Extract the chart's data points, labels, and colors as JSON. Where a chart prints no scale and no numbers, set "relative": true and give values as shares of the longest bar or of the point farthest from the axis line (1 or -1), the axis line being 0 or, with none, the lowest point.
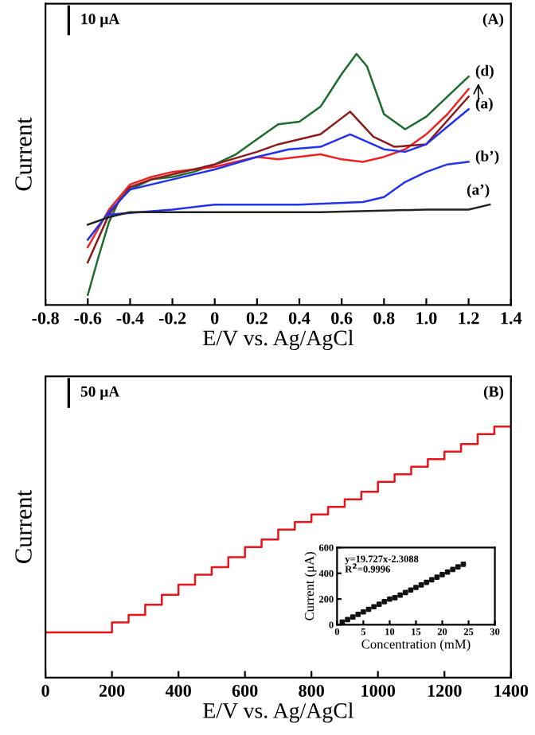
{
  "chart_data": [
    {
      "type": "line",
      "relative": true,
      "xlabel": "E/V vs. Ag/AgCl",
      "ylabel": "Current",
      "xlim": [
        -0.8,
        1.4
      ],
      "xticks": [
        -0.8,
        -0.6,
        -0.4,
        -0.2,
        0,
        0.2,
        0.4,
        0.6,
        0.8,
        {
          "value": 1.0,
          "label": "1.0"
        },
        1.2,
        1.4
      ],
      "annotations": [
        "10 μA",
        "(A)"
      ],
      "grid": false,
      "legend": false,
      "series": [
        {
          "name": "(d)",
          "color": "#1e6b2e",
          "x": [
            -0.6,
            -0.55,
            -0.5,
            -0.45,
            -0.4,
            -0.3,
            -0.2,
            -0.1,
            0,
            0.1,
            0.2,
            0.3,
            0.4,
            0.5,
            0.6,
            0.67,
            0.72,
            0.8,
            0.9,
            1.0,
            1.1,
            1.2
          ],
          "values": [
            0.04,
            0.19,
            0.33,
            0.42,
            0.46,
            0.5,
            0.51,
            0.53,
            0.56,
            0.6,
            0.66,
            0.72,
            0.73,
            0.79,
            0.92,
            1.0,
            0.95,
            0.76,
            0.7,
            0.75,
            0.83,
            0.91
          ]
        },
        {
          "color": "#ee2222",
          "x": [
            -0.6,
            -0.5,
            -0.4,
            -0.3,
            -0.2,
            0,
            0.2,
            0.3,
            0.5,
            0.6,
            0.7,
            0.8,
            0.9,
            1.0,
            1.1,
            1.2
          ],
          "values": [
            0.23,
            0.38,
            0.48,
            0.51,
            0.53,
            0.55,
            0.59,
            0.58,
            0.6,
            0.58,
            0.57,
            0.59,
            0.62,
            0.68,
            0.76,
            0.86
          ]
        },
        {
          "color": "#8b1a1a",
          "x": [
            -0.6,
            -0.5,
            -0.4,
            -0.3,
            -0.2,
            0,
            0.2,
            0.3,
            0.5,
            0.64,
            0.75,
            0.85,
            1.0,
            1.2
          ],
          "values": [
            0.17,
            0.36,
            0.47,
            0.5,
            0.52,
            0.56,
            0.61,
            0.64,
            0.68,
            0.77,
            0.67,
            0.63,
            0.64,
            0.83
          ]
        },
        {
          "name": "(a)",
          "color": "#2233ee",
          "x": [
            -0.6,
            -0.5,
            -0.4,
            -0.2,
            0,
            0.2,
            0.35,
            0.5,
            0.64,
            0.8,
            0.9,
            1.0,
            1.1,
            1.2
          ],
          "values": [
            0.26,
            0.37,
            0.46,
            0.5,
            0.54,
            0.59,
            0.62,
            0.63,
            0.68,
            0.62,
            0.61,
            0.64,
            0.71,
            0.78
          ]
        },
        {
          "name": "(b’)",
          "color": "#2233ee",
          "x": [
            -0.5,
            -0.2,
            0,
            0.4,
            0.7,
            0.8,
            0.9,
            1.0,
            1.1,
            1.2
          ],
          "values": [
            0.36,
            0.38,
            0.4,
            0.4,
            0.41,
            0.43,
            0.49,
            0.53,
            0.56,
            0.57
          ]
        },
        {
          "name": "(a’)",
          "color": "#222222",
          "x": [
            -0.6,
            -0.5,
            -0.4,
            0,
            0.5,
            1.0,
            1.2,
            1.3
          ],
          "values": [
            0.32,
            0.35,
            0.37,
            0.37,
            0.37,
            0.38,
            0.38,
            0.4
          ]
        }
      ]
    },
    {
      "type": "step",
      "relative": true,
      "xlabel": "E/V vs. Ag/AgCl",
      "ylabel": "Current",
      "xlim": [
        0,
        1400
      ],
      "xticks": [
        0,
        200,
        400,
        600,
        800,
        1000,
        1200,
        1400
      ],
      "annotations": [
        "50 μA",
        "(B)"
      ],
      "grid": false,
      "legend": false,
      "series": [
        {
          "color": "#e8141a",
          "x": [
            0,
            200,
            250,
            300,
            350,
            400,
            450,
            500,
            550,
            600,
            650,
            700,
            750,
            800,
            850,
            900,
            950,
            1000,
            1050,
            1100,
            1150,
            1200,
            1250,
            1300,
            1350,
            1400
          ],
          "values": [
            0.18,
            0.22,
            0.25,
            0.29,
            0.33,
            0.37,
            0.41,
            0.44,
            0.48,
            0.52,
            0.55,
            0.59,
            0.62,
            0.65,
            0.68,
            0.71,
            0.74,
            0.78,
            0.81,
            0.84,
            0.87,
            0.9,
            0.93,
            0.97,
            1.0,
            1.0
          ]
        }
      ]
    },
    {
      "type": "scatter",
      "xlabel": "Concentration (mM)",
      "ylabel": "Current (μA)",
      "xlim": [
        0,
        30
      ],
      "xticks": [
        0,
        5,
        10,
        15,
        20,
        25,
        30
      ],
      "ylim": [
        0,
        600
      ],
      "yticks": [
        0,
        200,
        400,
        600
      ],
      "annotations": [
        "y=19.727x-2.3088",
        "R$^{2}$=0.9996"
      ],
      "grid": false,
      "legend": false,
      "marker": "square",
      "series": [
        {
          "color": "#111111",
          "x": [
            1,
            2,
            3,
            4,
            5,
            6,
            7,
            8,
            9,
            10,
            11,
            12,
            13,
            14,
            15,
            16,
            17,
            18,
            19,
            20,
            21,
            22,
            23,
            24
          ],
          "values": [
            20,
            40,
            60,
            80,
            100,
            120,
            140,
            160,
            180,
            200,
            210,
            230,
            250,
            270,
            290,
            310,
            330,
            350,
            370,
            390,
            410,
            430,
            450,
            470
          ]
        }
      ]
    }
  ]
}
